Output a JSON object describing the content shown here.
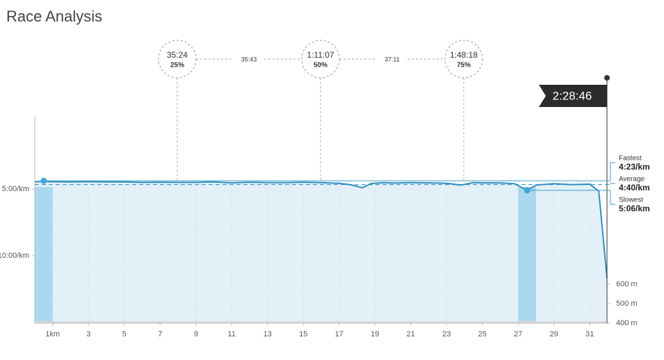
{
  "chart_data": {
    "type": "line",
    "title": "Race Analysis",
    "xlim": [
      0,
      31.96
    ],
    "xticks": [
      {
        "value": 1,
        "label": "1km"
      },
      3,
      5,
      7,
      9,
      11,
      13,
      15,
      17,
      19,
      21,
      23,
      25,
      27,
      29,
      31
    ],
    "ylim": [
      -25,
      903
    ],
    "y_inverted": true,
    "yticks": [
      {
        "value": 300,
        "label": "5:00/km"
      },
      {
        "value": 600,
        "label": "10:00/km"
      }
    ],
    "y2lim": [
      400,
      1461
    ],
    "y2ticks": [
      {
        "value": 600,
        "label": "600 m"
      },
      {
        "value": 500,
        "label": "500 m"
      },
      {
        "value": 400,
        "label": "400 m"
      }
    ],
    "grid": true,
    "series": [
      {
        "color": "#2e8fbf",
        "x": [
          0,
          0.5,
          1,
          2,
          3,
          4,
          5,
          6,
          7,
          8,
          9,
          10,
          11,
          12,
          13,
          14,
          15,
          16,
          17,
          17.6,
          18.3,
          18.8,
          19.5,
          20,
          21,
          22,
          23,
          23.8,
          24.5,
          25,
          26,
          26.8,
          27.5,
          28,
          29,
          30,
          31,
          31.5,
          31.96
        ],
        "values": [
          267,
          266,
          267,
          268,
          267,
          268,
          268,
          270,
          269,
          270,
          270,
          268,
          272,
          269,
          271,
          271,
          269,
          271,
          274,
          280,
          294,
          275,
          271,
          273,
          271,
          272,
          274,
          282,
          271,
          272,
          272,
          276,
          306,
          282,
          276,
          280,
          278,
          310,
          700
        ]
      },
      {
        "axis": "y2",
        "color": "#d9d9d9",
        "x": [
          0,
          31.96
        ],
        "values": [
          410,
          410
        ]
      }
    ],
    "highlight_bands": [
      [
        0,
        1
      ],
      [
        27,
        28
      ]
    ],
    "checkpoints": [
      {
        "time": "35:24",
        "percent": 25,
        "percent_label": "25%",
        "km": 7.96
      },
      {
        "time": "1:11:07",
        "percent": 50,
        "percent_label": "50%",
        "km": 15.96
      },
      {
        "time": "1:48:18",
        "percent": 75,
        "percent_label": "75%",
        "km": 23.96
      }
    ],
    "splits": [
      "35:43",
      "37:11"
    ],
    "finish_time": "2:28:46",
    "stats": [
      {
        "name": "Fastest",
        "value": 263,
        "value_label": "4:23/km",
        "km": 0.5
      },
      {
        "name": "Average",
        "value": 280,
        "value_label": "4:40/km"
      },
      {
        "name": "Slowest",
        "value": 306,
        "value_label": "5:06/km",
        "km": 27.5
      }
    ]
  }
}
